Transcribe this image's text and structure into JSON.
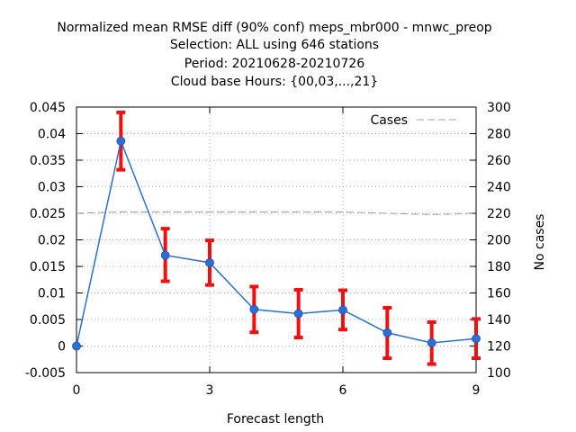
{
  "chart_data": {
    "type": "line",
    "title_lines": [
      "Normalized mean RMSE diff (90% conf) meps_mbr000 - mnwc_preop",
      "Selection: ALL using   646 stations",
      "Period: 20210628-20210726",
      "Cloud base   Hours: {00,03,...,21}"
    ],
    "xlabel": "Forecast length",
    "ylabel": "",
    "y2label": "No cases",
    "xlim": [
      0,
      9
    ],
    "ylim": [
      -0.005,
      0.045
    ],
    "y2lim": [
      100,
      300
    ],
    "x_ticks": [
      0,
      3,
      6,
      9
    ],
    "x_tick_labels": [
      "0",
      "3",
      "6",
      "9"
    ],
    "y_ticks": [
      -0.005,
      0,
      0.005,
      0.01,
      0.015,
      0.02,
      0.025,
      0.03,
      0.035,
      0.04,
      0.045
    ],
    "y_tick_labels": [
      "-0.005",
      "0",
      "0.005",
      "0.01",
      "0.015",
      "0.02",
      "0.025",
      "0.03",
      "0.035",
      "0.04",
      "0.045"
    ],
    "y2_ticks": [
      100,
      120,
      140,
      160,
      180,
      200,
      220,
      240,
      260,
      280,
      300
    ],
    "y2_tick_labels": [
      "100",
      "120",
      "140",
      "160",
      "180",
      "200",
      "220",
      "240",
      "260",
      "280",
      "300"
    ],
    "grid": true,
    "legend_position": "top-right",
    "series": [
      {
        "name": "",
        "axis": "left",
        "color": "#2a6fd6",
        "x": [
          0,
          1,
          2,
          3,
          4,
          5,
          6,
          7,
          8,
          9
        ],
        "y": [
          0,
          0.0386,
          0.0171,
          0.0157,
          0.0069,
          0.0061,
          0.0068,
          0.0025,
          0.0006,
          0.0014
        ],
        "err_low": [
          0,
          0.0332,
          0.0122,
          0.0115,
          0.0026,
          0.0016,
          0.0031,
          -0.0023,
          -0.0034,
          -0.0023
        ],
        "err_high": [
          0,
          0.044,
          0.0221,
          0.0199,
          0.0112,
          0.0106,
          0.0105,
          0.0072,
          0.0045,
          0.0051
        ],
        "error_color": "#ee1111"
      },
      {
        "name": "Cases",
        "axis": "right",
        "color": "#a0a0a0",
        "x": [
          0,
          1,
          2,
          3,
          4,
          5,
          6,
          7,
          8,
          9
        ],
        "y": [
          220,
          221,
          221,
          221,
          221,
          221,
          221,
          220,
          219,
          220
        ]
      }
    ]
  }
}
